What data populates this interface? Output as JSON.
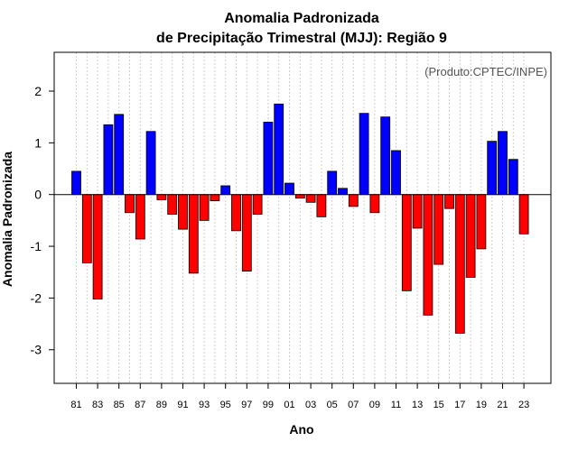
{
  "chart_data": {
    "type": "bar",
    "title": [
      "Anomalia Padronizada",
      "de Precipitação Trimestral (MJJ): Região 9"
    ],
    "annotation": "(Produto:CPTEC/INPE)",
    "xlabel": "Ano",
    "ylabel": "Anomalia Padronizada",
    "ylim": [
      -3.65,
      2.75
    ],
    "yticks": [
      -3,
      -2,
      -1,
      0,
      1,
      2
    ],
    "ytick_labels": [
      "-3",
      "-2",
      "-1",
      "0",
      "1",
      "2"
    ],
    "grid": "vertical dotted",
    "colors": {
      "positive": "#0000ff",
      "negative": "#ff0000"
    },
    "categories": [
      "81",
      "82",
      "83",
      "84",
      "85",
      "86",
      "87",
      "88",
      "89",
      "90",
      "91",
      "92",
      "93",
      "94",
      "95",
      "96",
      "97",
      "98",
      "99",
      "00",
      "01",
      "02",
      "03",
      "04",
      "05",
      "06",
      "07",
      "08",
      "09",
      "10",
      "11",
      "12",
      "13",
      "14",
      "15",
      "16",
      "17",
      "18",
      "19",
      "20",
      "21",
      "22",
      "23"
    ],
    "xtick_labels": [
      "81",
      "83",
      "85",
      "87",
      "89",
      "91",
      "93",
      "95",
      "97",
      "99",
      "01",
      "03",
      "05",
      "07",
      "09",
      "11",
      "13",
      "15",
      "17",
      "19",
      "21",
      "23"
    ],
    "values": [
      0.45,
      -1.32,
      -2.02,
      1.35,
      1.55,
      -0.35,
      -0.86,
      1.22,
      -0.1,
      -0.38,
      -0.67,
      -1.52,
      -0.5,
      -0.12,
      0.17,
      -0.7,
      -1.48,
      -0.38,
      1.4,
      1.75,
      0.22,
      -0.07,
      -0.15,
      -0.43,
      0.45,
      0.12,
      -0.23,
      1.57,
      -0.35,
      1.5,
      0.85,
      -1.86,
      -0.65,
      -2.33,
      -1.35,
      -0.27,
      -2.68,
      -1.6,
      -1.05,
      1.03,
      1.22,
      0.68,
      -0.76
    ]
  }
}
